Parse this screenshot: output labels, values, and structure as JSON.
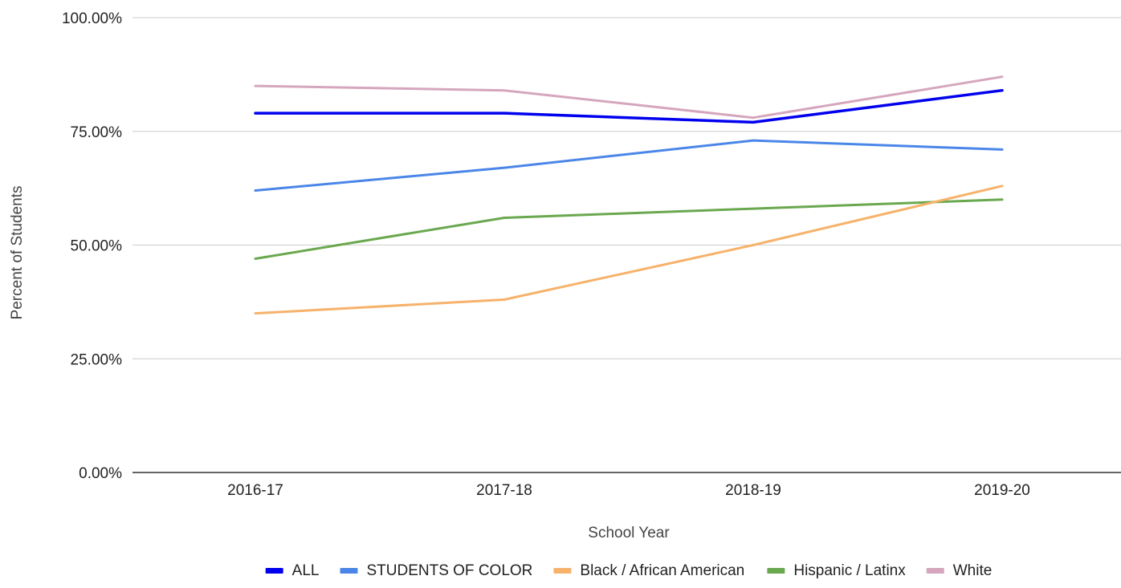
{
  "chart_data": {
    "type": "line",
    "title": "",
    "xlabel": "School Year",
    "ylabel": "Percent of Students",
    "categories": [
      "2016-17",
      "2017-18",
      "2018-19",
      "2019-20"
    ],
    "y_ticks": [
      "0.00%",
      "25.00%",
      "50.00%",
      "75.00%",
      "100.00%"
    ],
    "ylim": [
      0,
      100
    ],
    "grid": true,
    "legend_position": "bottom",
    "series": [
      {
        "name": "ALL",
        "color": "#0000ee",
        "values": [
          79,
          79,
          77,
          84
        ]
      },
      {
        "name": "STUDENTS OF COLOR",
        "color": "#4a86e8",
        "values": [
          62,
          67,
          73,
          71
        ]
      },
      {
        "name": "Black / African American",
        "color": "#f6b26b",
        "values": [
          35,
          38,
          50,
          63
        ]
      },
      {
        "name": "Hispanic / Latinx",
        "color": "#6aa84f",
        "values": [
          47,
          56,
          58,
          60
        ]
      },
      {
        "name": "White",
        "color": "#d5a6bd",
        "values": [
          85,
          84,
          78,
          87
        ]
      }
    ]
  }
}
